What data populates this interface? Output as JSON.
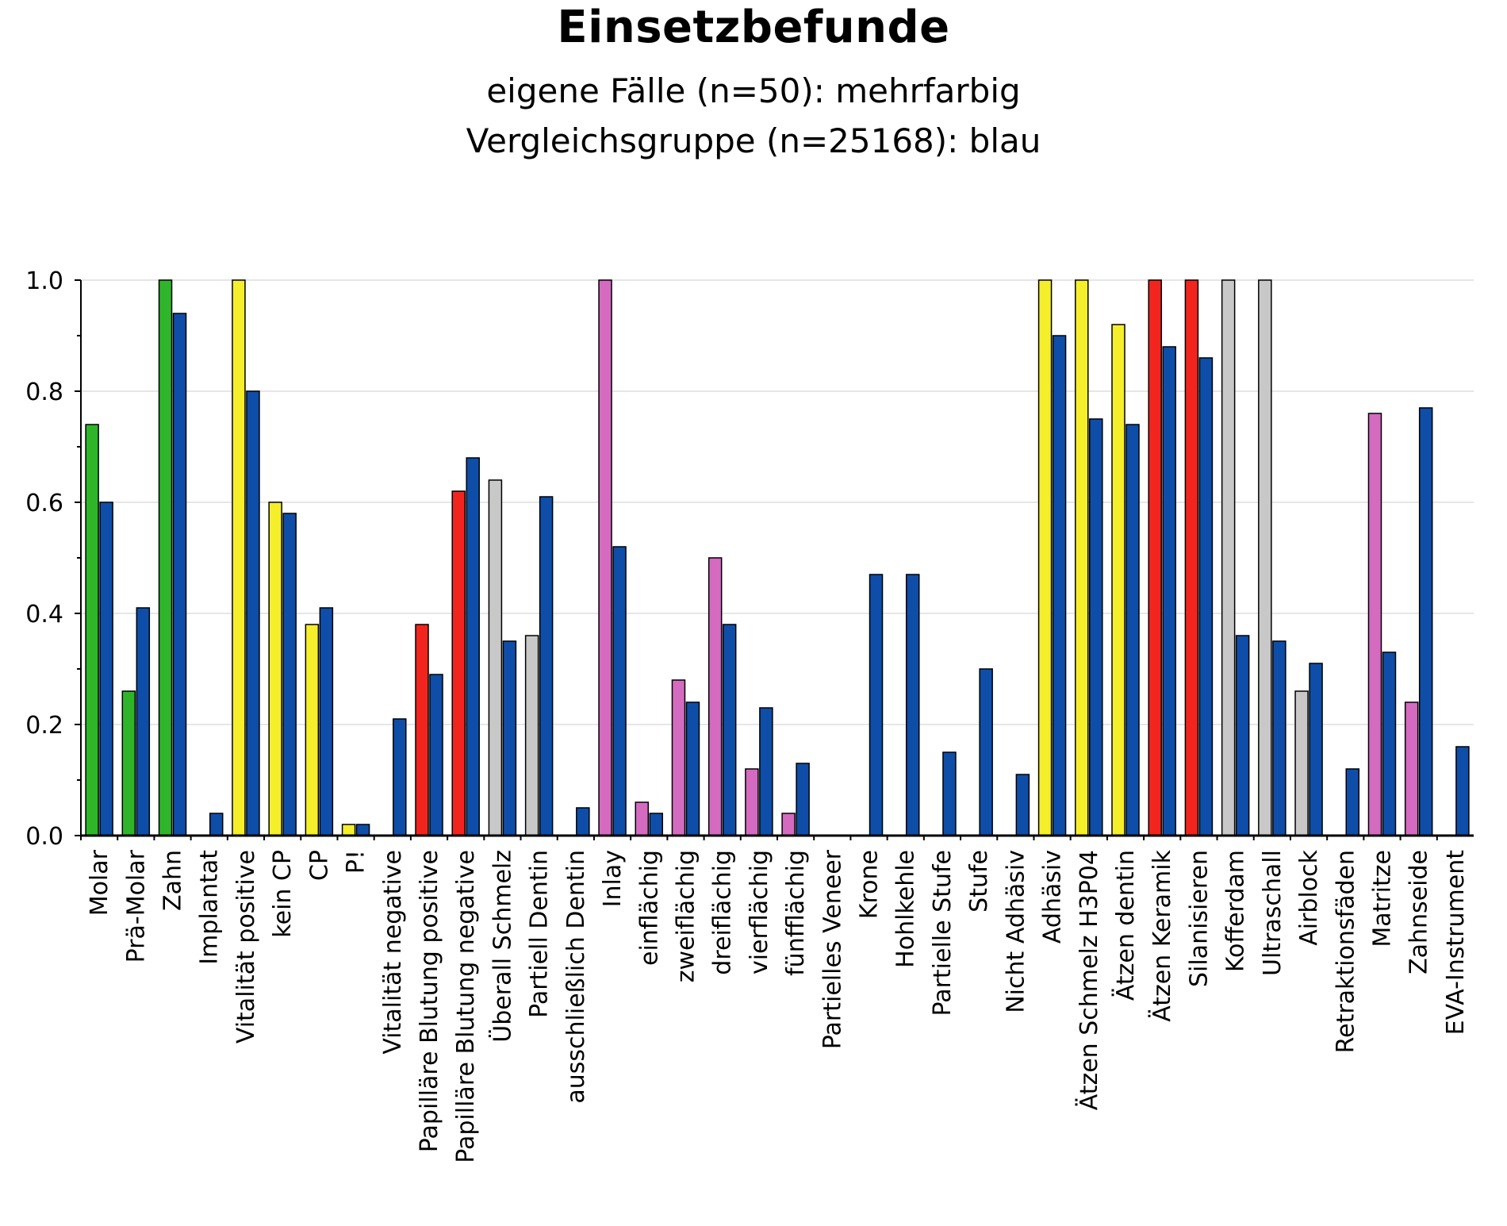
{
  "chart_data": {
    "type": "bar",
    "title": "Einsetzbefunde",
    "subtitle_lines": [
      "eigene Fälle (n=50): mehrfarbig",
      "Vergleichsgruppe (n=25168): blau"
    ],
    "xlabel": "",
    "ylabel": "",
    "ylim": [
      0,
      1.0
    ],
    "y_ticks": [
      "0.0",
      "0.2",
      "0.4",
      "0.6",
      "0.8",
      "1.0"
    ],
    "grid": true,
    "categories": [
      "Molar",
      "Prä-Molar",
      "Zahn",
      "Implantat",
      "Vitalität positive",
      "kein CP",
      "CP",
      "P!",
      "Vitalität negative",
      "Papilläre Blutung positive",
      "Papilläre Blutung negative",
      "Überall Schmelz",
      "Partiell Dentin",
      "ausschließlich Dentin",
      "Inlay",
      "einflächig",
      "zweiflächig",
      "dreiflächig",
      "vierflächig",
      "fünfflächig",
      "Partielles Veneer",
      "Krone",
      "Hohlkehle",
      "Partielle Stufe",
      "Stufe",
      "Nicht Adhäsiv",
      "Adhäsiv",
      "Ätzen Schmelz H3P04",
      "Ätzen dentin",
      "Ätzen Keramik",
      "Silanisieren",
      "Kofferdam",
      "Ultraschall",
      "Airblock",
      "Retraktionsfäden",
      "Matritze",
      "Zahnseide",
      "EVA-Instrument"
    ],
    "series": [
      {
        "name": "eigene Fälle (n=50)",
        "values": [
          0.74,
          0.26,
          1.0,
          0.0,
          1.0,
          0.6,
          0.38,
          0.02,
          0.0,
          0.38,
          0.62,
          0.64,
          0.36,
          0.0,
          1.0,
          0.06,
          0.28,
          0.5,
          0.12,
          0.04,
          0.0,
          0.0,
          0.0,
          0.0,
          0.0,
          0.0,
          1.0,
          1.0,
          0.92,
          1.0,
          1.0,
          1.0,
          1.0,
          0.26,
          0.0,
          0.76,
          0.24,
          0.0
        ],
        "colors": [
          "#2fb52a",
          "#2fb52a",
          "#2fb52a",
          "#2fb52a",
          "#f5ee2a",
          "#f5ee2a",
          "#f5ee2a",
          "#f5ee2a",
          "#f5ee2a",
          "#f2251e",
          "#f2251e",
          "#c8c8c8",
          "#c8c8c8",
          "#c8c8c8",
          "#d46bc0",
          "#d46bc0",
          "#d46bc0",
          "#d46bc0",
          "#d46bc0",
          "#d46bc0",
          "#d46bc0",
          "#d46bc0",
          "#d46bc0",
          "#d46bc0",
          "#d46bc0",
          "#f5ee2a",
          "#f5ee2a",
          "#f5ee2a",
          "#f5ee2a",
          "#f2251e",
          "#f2251e",
          "#c8c8c8",
          "#c8c8c8",
          "#c8c8c8",
          "#d46bc0",
          "#d46bc0",
          "#d46bc0",
          "#d46bc0"
        ]
      },
      {
        "name": "Vergleichsgruppe (n=25168)",
        "values": [
          0.6,
          0.41,
          0.94,
          0.04,
          0.8,
          0.58,
          0.41,
          0.02,
          0.21,
          0.29,
          0.68,
          0.35,
          0.61,
          0.05,
          0.52,
          0.04,
          0.24,
          0.38,
          0.23,
          0.13,
          0.0,
          0.47,
          0.47,
          0.15,
          0.3,
          0.11,
          0.9,
          0.75,
          0.74,
          0.88,
          0.86,
          0.36,
          0.35,
          0.31,
          0.12,
          0.33,
          0.77,
          0.16
        ],
        "color": "#0e4ea8"
      }
    ]
  }
}
